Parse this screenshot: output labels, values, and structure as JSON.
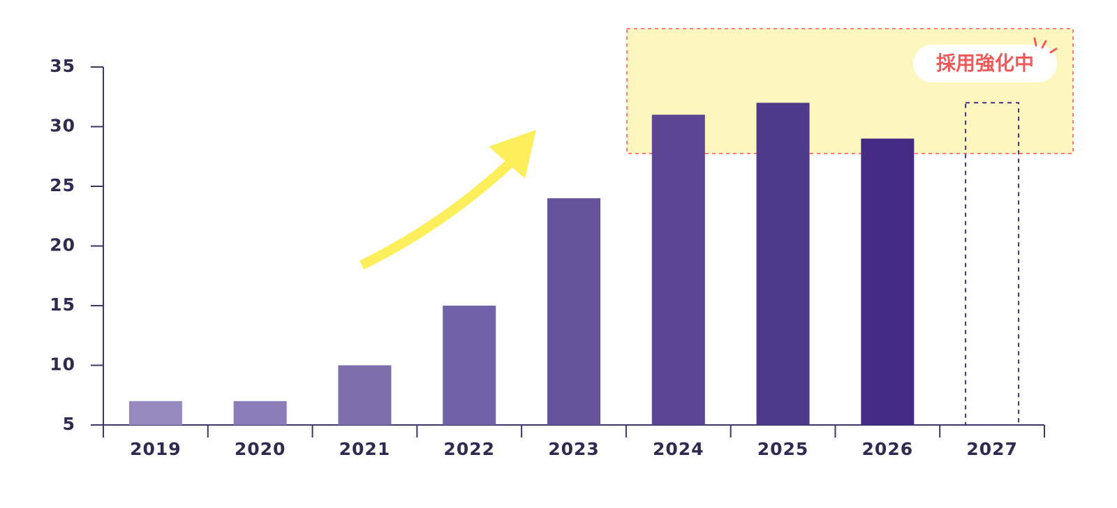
{
  "chart_data": {
    "type": "bar",
    "annotation": "採用強化中",
    "categories": [
      "2019",
      "2020",
      "2021",
      "2022",
      "2023",
      "2024",
      "2025",
      "2026",
      "2027"
    ],
    "values": [
      7,
      7,
      10,
      15,
      24,
      31,
      32,
      29,
      32
    ],
    "colors": [
      "#978ac0",
      "#8b7db8",
      "#7f6eac",
      "#7161a6",
      "#67529c",
      "#5c4592",
      "#4f398a",
      "#442b84",
      "#3e2f80"
    ],
    "bar_styles": [
      "solid",
      "solid",
      "solid",
      "solid",
      "solid",
      "solid",
      "solid",
      "solid",
      "dashed"
    ],
    "ylim": [
      5,
      35
    ],
    "yticks": [
      5,
      10,
      15,
      20,
      25,
      30,
      35
    ]
  }
}
